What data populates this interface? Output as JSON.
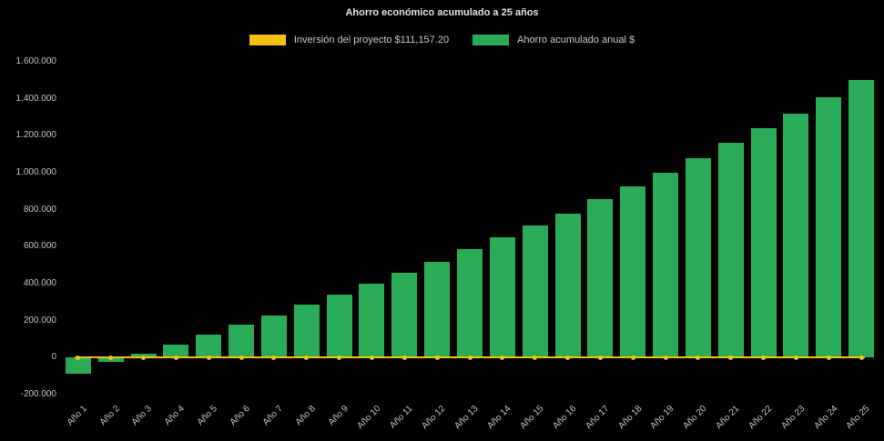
{
  "page": {
    "background": "#000000"
  },
  "chart_data": {
    "type": "bar",
    "title": "Ahorro económico acumulado a 25 años",
    "categories": [
      "Año 1",
      "Año 2",
      "Año 3",
      "Año 4",
      "Año 5",
      "Año 6",
      "Año 7",
      "Año 8",
      "Año 9",
      "Año 10",
      "Año 11",
      "Año 12",
      "Año 13",
      "Año 14",
      "Año 15",
      "Año 16",
      "Año 17",
      "Año 18",
      "Año 19",
      "Año 20",
      "Año 21",
      "Año 22",
      "Año 23",
      "Año 24",
      "Año 25"
    ],
    "series": [
      {
        "name": "Inversión del proyecto $111,157.20",
        "type": "line",
        "color": "#F2C313",
        "values": [
          0,
          0,
          0,
          0,
          0,
          0,
          0,
          0,
          0,
          0,
          0,
          0,
          0,
          0,
          0,
          0,
          0,
          0,
          0,
          0,
          0,
          0,
          0,
          0,
          0
        ]
      },
      {
        "name": "Ahorro acumulado anual $",
        "type": "bar",
        "color": "#2AAB57",
        "values": [
          -85000,
          -25000,
          20000,
          70000,
          125000,
          180000,
          230000,
          285000,
          340000,
          400000,
          460000,
          520000,
          585000,
          650000,
          715000,
          780000,
          855000,
          925000,
          1000000,
          1080000,
          1160000,
          1240000,
          1320000,
          1410000,
          1500000
        ]
      }
    ],
    "ylim": [
      -200000,
      1600000
    ],
    "y_ticks": [
      {
        "value": 1600000,
        "label": "1.600.000"
      },
      {
        "value": 1400000,
        "label": "1.400.000"
      },
      {
        "value": 1200000,
        "label": "1.200.000"
      },
      {
        "value": 1000000,
        "label": "1.000.000"
      },
      {
        "value": 800000,
        "label": "800.000"
      },
      {
        "value": 600000,
        "label": "600.000"
      },
      {
        "value": 400000,
        "label": "400.000"
      },
      {
        "value": 200000,
        "label": "200.000"
      },
      {
        "value": 0,
        "label": "0"
      },
      {
        "value": -200000,
        "label": "-200.000"
      }
    ],
    "grid": false,
    "legend_position": "top"
  }
}
